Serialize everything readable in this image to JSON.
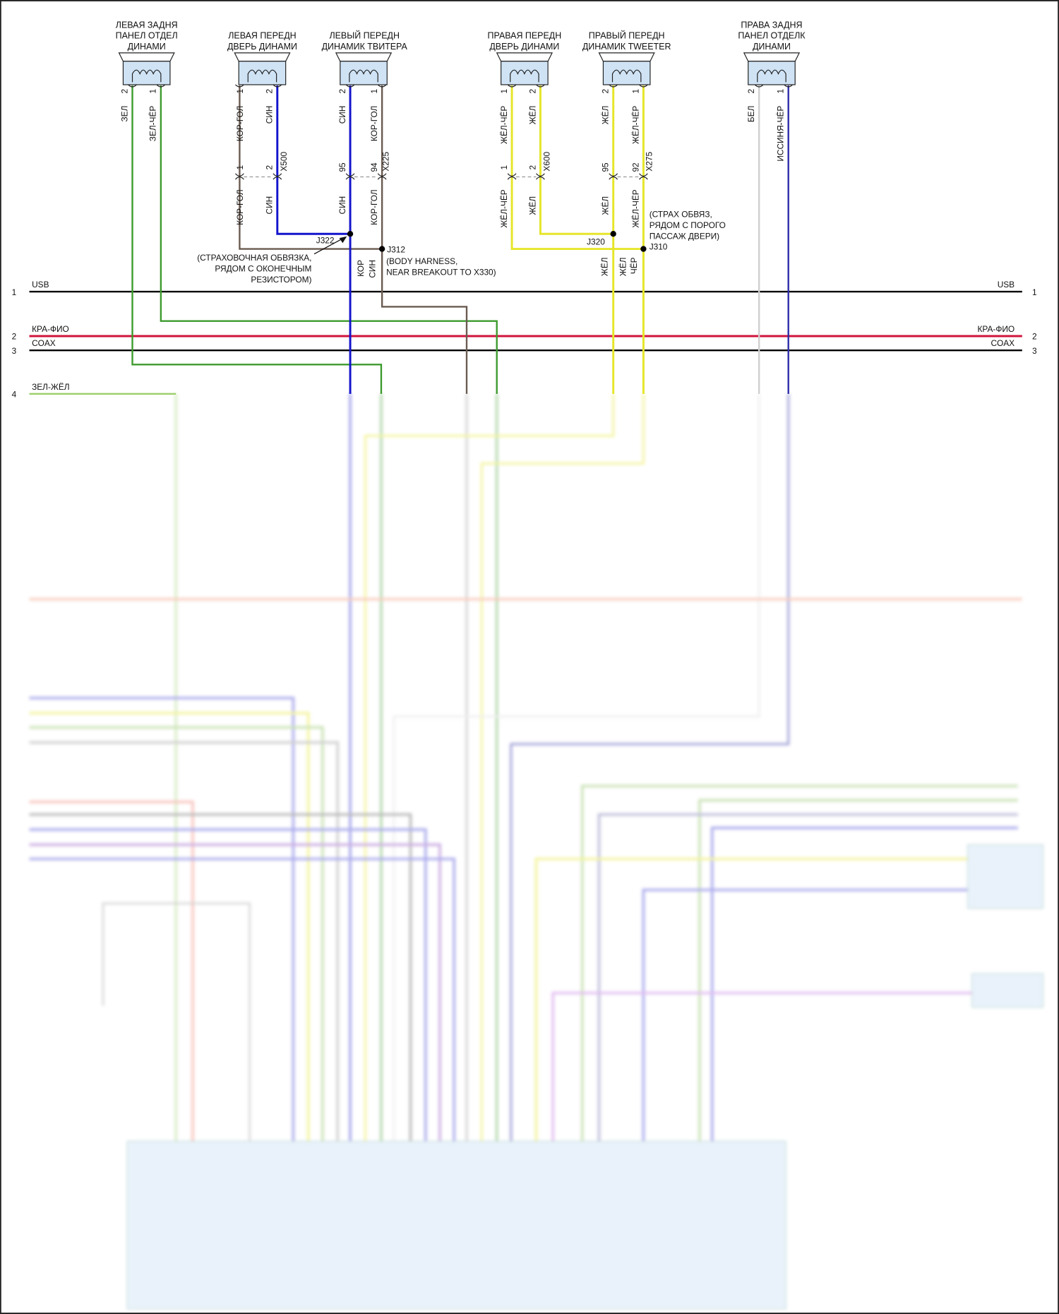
{
  "colors": {
    "green": "#3c9a2c",
    "blue": "#1414cc",
    "brown": "#6a5a50",
    "yellow": "#e6e62a",
    "red": "#d0143c",
    "white": "#cfcfcf",
    "dark_blue": "#2c2ca8",
    "black": "#000000",
    "module_fill": "#cfe3f5"
  },
  "speakers": [
    {
      "title": [
        "ЛЕВАЯ ЗАДНЯ",
        "ПАНЕЛ ОТДЕЛ",
        "ДИНАМИ"
      ],
      "pins": [
        "2",
        "1"
      ],
      "wires": [
        "ЗЕЛ",
        "ЗЕЛ-ЧЁР"
      ]
    },
    {
      "title": [
        "ЛЕВАЯ ПЕРЕДН",
        "ДВЕРЬ ДИНАМИ"
      ],
      "pins": [
        "1",
        "2"
      ],
      "wires": [
        "КОР-ГОЛ",
        "СИН"
      ]
    },
    {
      "title": [
        "ЛЕВЫЙ ПЕРЕДН",
        "ДИНАМИК ТВИТЕРА"
      ],
      "pins": [
        "2",
        "1"
      ],
      "wires": [
        "СИН",
        "КОР-ГОЛ"
      ]
    },
    {
      "title": [
        "ПРАВАЯ ПЕРЕДН",
        "ДВЕРЬ ДИНАМИ"
      ],
      "pins": [
        "1",
        "2"
      ],
      "wires": [
        "ЖЁЛ-ЧЁР",
        "ЖЁЛ"
      ]
    },
    {
      "title": [
        "ПРАВЫЙ ПЕРЕДН",
        "ДИНАМИК TWEETER"
      ],
      "pins": [
        "2",
        "1"
      ],
      "wires": [
        "ЖЁЛ",
        "ЖЁЛ-ЧЁР"
      ]
    },
    {
      "title": [
        "ПРАВА ЗАДНЯ",
        "ПАНЕЛ ОТДЕЛК",
        "ДИНАМИ"
      ],
      "pins": [
        "2",
        "1"
      ],
      "wires": [
        "БЕЛ",
        "ИССИНЯ-ЧЁР"
      ]
    }
  ],
  "connectors": [
    {
      "name": "X500",
      "pins": [
        "1",
        "2"
      ],
      "wires": [
        "КОР-ГОЛ",
        "СИН"
      ]
    },
    {
      "name": "X225",
      "pins": [
        "95",
        "94"
      ],
      "wires": [
        "СИН",
        "КОР-ГОЛ"
      ]
    },
    {
      "name": "X600",
      "pins": [
        "1",
        "2"
      ],
      "wires": [
        "ЖЁЛ-ЧЁР",
        "ЖЁЛ"
      ]
    },
    {
      "name": "X275",
      "pins": [
        "95",
        "92"
      ],
      "wires": [
        "ЖЁЛ",
        "ЖЁЛ-ЧЁР"
      ]
    }
  ],
  "splices": {
    "j322": "J322",
    "j312": "J312",
    "j320": "J320",
    "j310": "J310"
  },
  "notes": {
    "left_harness": [
      "(СТРАХОВОЧНАЯ ОБВЯЗКА,",
      "РЯДОМ С ОКОНЕЧНЫМ",
      "РЕЗИСТОРОМ)"
    ],
    "body_harness": [
      "(BODY HARNESS,",
      "NEAR BREAKOUT TO X330)"
    ],
    "right_harness": [
      "(СТРАХ ОБВЯЗ,",
      "РЯДОМ С ПОРОГО",
      "ПАССАЖ ДВЕРИ)"
    ],
    "left_trunk": [
      "КОР",
      "СИН"
    ],
    "right_trunk": [
      "ЖЁЛ",
      "ЖЁЛ",
      "ЧЁР"
    ]
  },
  "buses": [
    {
      "num": "1",
      "label": "USB"
    },
    {
      "num": "2",
      "label": "КРА-ФИО"
    },
    {
      "num": "3",
      "label": "COAX"
    },
    {
      "num": "4",
      "label": "ЗЕЛ-ЖЁЛ"
    }
  ]
}
